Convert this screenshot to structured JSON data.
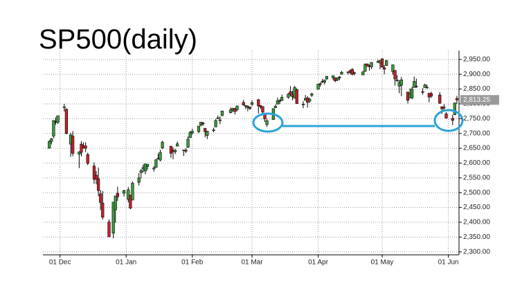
{
  "chart_data": {
    "type": "candlestick",
    "title": "SP500(daily)",
    "up_color": "#3c9b3c",
    "down_color": "#c8202a",
    "grid": true,
    "x": [
      -5,
      -4,
      -3,
      -2,
      -1,
      2,
      3,
      5,
      6,
      9,
      10,
      11,
      12,
      13,
      16,
      17,
      18,
      19,
      20,
      23,
      25,
      26,
      27,
      30,
      32,
      33,
      34,
      37,
      38,
      39,
      40,
      41,
      44,
      45,
      46,
      47,
      48,
      52,
      53,
      54,
      55,
      58,
      59,
      60,
      61,
      62,
      65,
      66,
      67,
      68,
      69,
      72,
      73,
      74,
      75,
      76,
      80,
      81,
      82,
      83,
      86,
      87,
      88,
      89,
      90,
      93,
      94,
      95,
      96,
      97,
      100,
      101,
      102,
      103,
      104,
      107,
      108,
      109,
      110,
      111,
      114,
      115,
      116,
      117,
      118,
      121,
      122,
      123,
      124,
      125,
      128,
      129,
      130,
      131,
      132,
      135,
      136,
      137,
      138,
      142,
      143,
      144,
      145,
      146,
      149,
      150,
      151,
      152,
      153,
      156,
      157,
      158,
      159,
      160,
      163,
      164,
      165,
      166,
      167,
      170,
      171,
      172,
      173,
      174,
      178,
      179,
      180,
      181,
      184,
      185,
      186
    ],
    "open": [
      2650,
      2673,
      2691,
      2740,
      2737,
      2790,
      2782,
      2664,
      2691,
      2630,
      2664,
      2658,
      2658,
      2629,
      2590,
      2559,
      2547,
      2496,
      2465,
      2401,
      2363,
      2442,
      2498,
      2498,
      2477,
      2491,
      2475,
      2535,
      2568,
      2580,
      2573,
      2588,
      2580,
      2585,
      2614,
      2610,
      2651,
      2657,
      2643,
      2638,
      2657,
      2644,
      2644,
      2653,
      2686,
      2702,
      2706,
      2728,
      2736,
      2717,
      2693,
      2712,
      2722,
      2750,
      2743,
      2760,
      2770,
      2779,
      2785,
      2780,
      2805,
      2792,
      2787,
      2789,
      2798,
      2814,
      2794,
      2791,
      2768,
      2730,
      2747,
      2787,
      2799,
      2811,
      2811,
      2822,
      2841,
      2831,
      2819,
      2848,
      2797,
      2812,
      2820,
      2809,
      2829,
      2849,
      2868,
      2876,
      2873,
      2884,
      2888,
      2888,
      2881,
      2891,
      2900,
      2908,
      2912,
      2916,
      2904,
      2898,
      2910,
      2935,
      2928,
      2925,
      2940,
      2938,
      2952,
      2922,
      2929,
      2909,
      2913,
      2880,
      2860,
      2863,
      2840,
      2820,
      2820,
      2855,
      2858,
      2841,
      2855,
      2856,
      2836,
      2835,
      2830,
      2790,
      2786,
      2766,
      2751,
      2763,
      2818
    ],
    "high": [
      2677,
      2685,
      2744,
      2754,
      2760,
      2800,
      2785,
      2702,
      2708,
      2640,
      2674,
      2670,
      2670,
      2635,
      2602,
      2573,
      2585,
      2509,
      2505,
      2410,
      2468,
      2489,
      2520,
      2510,
      2519,
      2493,
      2538,
      2566,
      2580,
      2595,
      2597,
      2596,
      2589,
      2613,
      2632,
      2645,
      2675,
      2657,
      2653,
      2648,
      2673,
      2644,
      2650,
      2690,
      2708,
      2716,
      2725,
      2738,
      2739,
      2719,
      2708,
      2719,
      2748,
      2761,
      2757,
      2776,
      2788,
      2787,
      2785,
      2794,
      2813,
      2796,
      2795,
      2790,
      2812,
      2817,
      2796,
      2791,
      2768,
      2749,
      2784,
      2798,
      2821,
      2816,
      2831,
      2836,
      2860,
      2844,
      2861,
      2852,
      2809,
      2830,
      2826,
      2820,
      2837,
      2868,
      2873,
      2885,
      2882,
      2893,
      2895,
      2889,
      2889,
      2894,
      2911,
      2909,
      2916,
      2921,
      2909,
      2910,
      2936,
      2936,
      2933,
      2940,
      2949,
      2948,
      2954,
      2931,
      2948,
      2932,
      2913,
      2897,
      2880,
      2891,
      2840,
      2852,
      2858,
      2892,
      2885,
      2853,
      2868,
      2865,
      2836,
      2841,
      2840,
      2792,
      2799,
      2772,
      2763,
      2804,
      2827
    ],
    "low": [
      2649,
      2663,
      2684,
      2729,
      2732,
      2774,
      2697,
      2621,
      2623,
      2583,
      2622,
      2649,
      2637,
      2593,
      2530,
      2528,
      2488,
      2441,
      2409,
      2351,
      2346,
      2398,
      2472,
      2487,
      2467,
      2444,
      2475,
      2524,
      2548,
      2568,
      2562,
      2577,
      2571,
      2585,
      2612,
      2606,
      2647,
      2617,
      2613,
      2630,
      2657,
      2624,
      2634,
      2652,
      2684,
      2696,
      2701,
      2724,
      2726,
      2687,
      2681,
      2704,
      2722,
      2749,
      2731,
      2760,
      2768,
      2773,
      2764,
      2775,
      2794,
      2782,
      2775,
      2779,
      2792,
      2767,
      2783,
      2766,
      2739,
      2722,
      2747,
      2786,
      2799,
      2799,
      2811,
      2817,
      2826,
      2812,
      2818,
      2800,
      2785,
      2812,
      2787,
      2804,
      2823,
      2849,
      2858,
      2870,
      2865,
      2882,
      2880,
      2873,
      2877,
      2880,
      2898,
      2899,
      2900,
      2896,
      2896,
      2896,
      2908,
      2926,
      2912,
      2917,
      2939,
      2917,
      2923,
      2900,
      2929,
      2899,
      2862,
      2873,
      2836,
      2826,
      2801,
      2820,
      2816,
      2855,
      2854,
      2831,
      2855,
      2852,
      2805,
      2820,
      2800,
      2766,
      2776,
      2750,
      2728,
      2763,
      2800
    ],
    "close": [
      2673,
      2682,
      2744,
      2738,
      2760,
      2790,
      2700,
      2695,
      2633,
      2637,
      2636,
      2651,
      2650,
      2599,
      2545,
      2546,
      2507,
      2467,
      2417,
      2351,
      2468,
      2489,
      2486,
      2507,
      2510,
      2448,
      2532,
      2550,
      2574,
      2585,
      2597,
      2596,
      2583,
      2611,
      2616,
      2636,
      2671,
      2633,
      2639,
      2643,
      2665,
      2644,
      2640,
      2681,
      2704,
      2707,
      2725,
      2738,
      2732,
      2706,
      2708,
      2710,
      2744,
      2753,
      2746,
      2776,
      2780,
      2784,
      2774,
      2793,
      2796,
      2794,
      2792,
      2784,
      2804,
      2793,
      2790,
      2772,
      2749,
      2743,
      2784,
      2792,
      2811,
      2809,
      2822,
      2833,
      2833,
      2824,
      2855,
      2801,
      2799,
      2818,
      2805,
      2816,
      2834,
      2867,
      2867,
      2873,
      2880,
      2893,
      2895,
      2878,
      2888,
      2888,
      2907,
      2906,
      2907,
      2900,
      2905,
      2908,
      2934,
      2927,
      2926,
      2940,
      2943,
      2946,
      2924,
      2917,
      2946,
      2932,
      2884,
      2880,
      2871,
      2881,
      2812,
      2834,
      2850,
      2876,
      2860,
      2840,
      2864,
      2856,
      2823,
      2826,
      2802,
      2783,
      2789,
      2752,
      2744,
      2803,
      2813.25
    ],
    "xlim": [
      -8,
      187
    ],
    "xticks": [
      {
        "value": 0,
        "label": "01 Dec"
      },
      {
        "value": 31,
        "label": "01 Jan"
      },
      {
        "value": 62,
        "label": "01 Feb"
      },
      {
        "value": 90,
        "label": "01 Mar"
      },
      {
        "value": 121,
        "label": "01 Apr"
      },
      {
        "value": 151,
        "label": "01 May"
      },
      {
        "value": 182,
        "label": "01 Jun"
      }
    ],
    "ylim": [
      2290,
      2980
    ],
    "yticks": [
      {
        "value": 2300,
        "label": "2,300.00"
      },
      {
        "value": 2350,
        "label": "2,350.00"
      },
      {
        "value": 2400,
        "label": "2,400.00"
      },
      {
        "value": 2450,
        "label": "2,450.00"
      },
      {
        "value": 2500,
        "label": "2,500.00"
      },
      {
        "value": 2550,
        "label": "2,550.00"
      },
      {
        "value": 2600,
        "label": "2,600.00"
      },
      {
        "value": 2650,
        "label": "2,650.00"
      },
      {
        "value": 2700,
        "label": "2,700.00"
      },
      {
        "value": 2750,
        "label": "2,750.00"
      },
      {
        "value": 2800,
        "label": "2,800.00"
      },
      {
        "value": 2850,
        "label": "2,850.00"
      },
      {
        "value": 2900,
        "label": "2,900.00"
      },
      {
        "value": 2950,
        "label": "2,950.00"
      }
    ],
    "last_price": {
      "value": 2813.25,
      "label": "2,813.25"
    }
  }
}
